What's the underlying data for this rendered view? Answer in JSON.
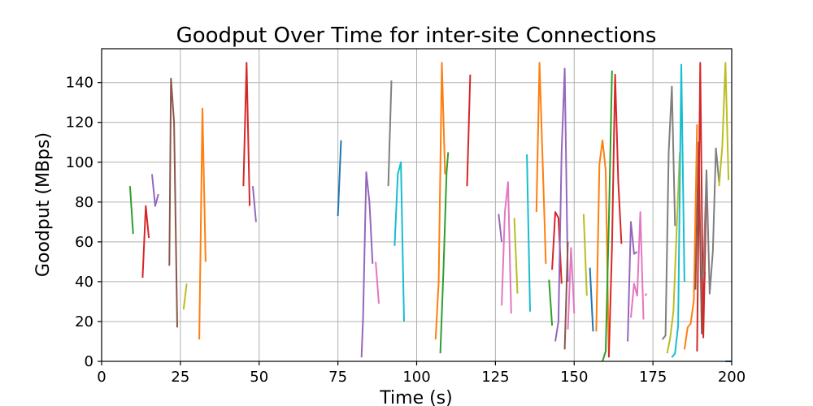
{
  "chart_data": {
    "type": "line",
    "title": "Goodput Over Time for inter-site Connections",
    "xlabel": "Time (s)",
    "ylabel": "Goodput (MBps)",
    "xlim": [
      0,
      200
    ],
    "ylim": [
      0,
      157
    ],
    "xticks": [
      0,
      25,
      50,
      75,
      100,
      125,
      150,
      175,
      200
    ],
    "yticks": [
      0,
      20,
      40,
      60,
      80,
      100,
      120,
      140
    ],
    "grid": true,
    "legend": "none",
    "series": [
      {
        "color": "#2ca02c",
        "x": [
          9,
          10
        ],
        "y": [
          88,
          64
        ]
      },
      {
        "color": "#d62728",
        "x": [
          13,
          14,
          15
        ],
        "y": [
          42,
          78,
          62
        ]
      },
      {
        "color": "#9467bd",
        "x": [
          16,
          17,
          18
        ],
        "y": [
          94,
          78,
          84
        ]
      },
      {
        "color": "#8c564b",
        "x": [
          21.5,
          22,
          23,
          24
        ],
        "y": [
          48,
          142,
          120,
          17
        ]
      },
      {
        "color": "#bcbd22",
        "x": [
          26,
          27
        ],
        "y": [
          26,
          39
        ]
      },
      {
        "color": "#ff7f0e",
        "x": [
          31,
          32,
          33
        ],
        "y": [
          11,
          127,
          50
        ]
      },
      {
        "color": "#d62728",
        "x": [
          45,
          46,
          47
        ],
        "y": [
          88,
          150,
          78
        ]
      },
      {
        "color": "#9467bd",
        "x": [
          48,
          49
        ],
        "y": [
          88,
          70
        ]
      },
      {
        "color": "#1f77b4",
        "x": [
          75,
          76
        ],
        "y": [
          73,
          111
        ]
      },
      {
        "color": "#9467bd",
        "x": [
          82.5,
          83,
          84,
          85,
          86
        ],
        "y": [
          2,
          22,
          95,
          80,
          49
        ]
      },
      {
        "color": "#e377c2",
        "x": [
          87,
          88
        ],
        "y": [
          50,
          29
        ]
      },
      {
        "color": "#7f7f7f",
        "x": [
          91,
          92
        ],
        "y": [
          88,
          141
        ]
      },
      {
        "color": "#17becf",
        "x": [
          93,
          94,
          95,
          96
        ],
        "y": [
          58,
          94,
          100,
          20
        ]
      },
      {
        "color": "#ff7f0e",
        "x": [
          106,
          107,
          108,
          109
        ],
        "y": [
          11,
          40,
          150,
          94
        ]
      },
      {
        "color": "#2ca02c",
        "x": [
          107.5,
          108.5,
          109.5,
          110
        ],
        "y": [
          4,
          45,
          95,
          105
        ]
      },
      {
        "color": "#d62728",
        "x": [
          116,
          117
        ],
        "y": [
          88,
          144
        ]
      },
      {
        "color": "#9467bd",
        "x": [
          126,
          127
        ],
        "y": [
          74,
          60
        ]
      },
      {
        "color": "#e377c2",
        "x": [
          127,
          128,
          129,
          130
        ],
        "y": [
          28,
          75,
          90,
          24
        ]
      },
      {
        "color": "#bcbd22",
        "x": [
          131,
          132
        ],
        "y": [
          72,
          34
        ]
      },
      {
        "color": "#17becf",
        "x": [
          135,
          136
        ],
        "y": [
          104,
          25
        ]
      },
      {
        "color": "#ff7f0e",
        "x": [
          138,
          139,
          140,
          141
        ],
        "y": [
          75,
          150,
          100,
          49
        ]
      },
      {
        "color": "#2ca02c",
        "x": [
          142,
          143
        ],
        "y": [
          41,
          18
        ]
      },
      {
        "color": "#d62728",
        "x": [
          143,
          144,
          145,
          146
        ],
        "y": [
          46,
          75,
          72,
          39
        ]
      },
      {
        "color": "#9467bd",
        "x": [
          144,
          145,
          146,
          147,
          148
        ],
        "y": [
          10,
          20,
          105,
          147,
          40
        ]
      },
      {
        "color": "#8c564b",
        "x": [
          147,
          148
        ],
        "y": [
          6,
          60
        ]
      },
      {
        "color": "#e377c2",
        "x": [
          148,
          149,
          150
        ],
        "y": [
          16,
          57,
          24
        ]
      },
      {
        "color": "#bcbd22",
        "x": [
          153,
          154
        ],
        "y": [
          74,
          33
        ]
      },
      {
        "color": "#1f77b4",
        "x": [
          155,
          156
        ],
        "y": [
          47,
          15
        ]
      },
      {
        "color": "#ff7f0e",
        "x": [
          157,
          158,
          159,
          160,
          161
        ],
        "y": [
          15,
          99,
          111,
          96,
          2
        ]
      },
      {
        "color": "#2ca02c",
        "x": [
          159,
          160,
          161,
          162
        ],
        "y": [
          0,
          5,
          70,
          146
        ]
      },
      {
        "color": "#d62728",
        "x": [
          161,
          162,
          163,
          164,
          165
        ],
        "y": [
          2,
          58,
          144,
          90,
          59
        ]
      },
      {
        "color": "#9467bd",
        "x": [
          167,
          168,
          169,
          170
        ],
        "y": [
          10,
          70,
          54,
          55
        ]
      },
      {
        "color": "#e377c2",
        "x": [
          168,
          169,
          170,
          171,
          172
        ],
        "y": [
          22,
          39,
          33,
          75,
          21
        ]
      },
      {
        "color": "#e377c2",
        "x": [
          172.5,
          173
        ],
        "y": [
          33,
          34
        ]
      },
      {
        "color": "#7f7f7f",
        "x": [
          178,
          179,
          180,
          181,
          182
        ],
        "y": [
          11,
          13,
          105,
          138,
          68
        ]
      },
      {
        "color": "#bcbd22",
        "x": [
          179.5,
          180.5,
          181.5,
          182.5,
          183.5
        ],
        "y": [
          4,
          12,
          25,
          65,
          105
        ]
      },
      {
        "color": "#17becf",
        "x": [
          181,
          182,
          183,
          184,
          185
        ],
        "y": [
          2,
          4,
          18,
          149,
          40
        ]
      },
      {
        "color": "#ff7f0e",
        "x": [
          185,
          186,
          187,
          188,
          189
        ],
        "y": [
          6,
          17,
          19,
          31,
          119
        ]
      },
      {
        "color": "#8c564b",
        "x": [
          188.5,
          189.5,
          190.5,
          191.5
        ],
        "y": [
          36,
          110,
          14,
          45
        ]
      },
      {
        "color": "#d62728",
        "x": [
          189,
          190,
          191,
          192
        ],
        "y": [
          5,
          150,
          12,
          90
        ]
      },
      {
        "color": "#7f7f7f",
        "x": [
          191,
          192,
          193,
          194,
          195,
          196
        ],
        "y": [
          42,
          96,
          34,
          55,
          107,
          90
        ]
      },
      {
        "color": "#bcbd22",
        "x": [
          196,
          197,
          198,
          199
        ],
        "y": [
          88,
          108,
          150,
          91
        ]
      },
      {
        "color": "#1f77b4",
        "x": [
          198,
          199,
          200
        ],
        "y": [
          0,
          0,
          0
        ]
      }
    ]
  }
}
